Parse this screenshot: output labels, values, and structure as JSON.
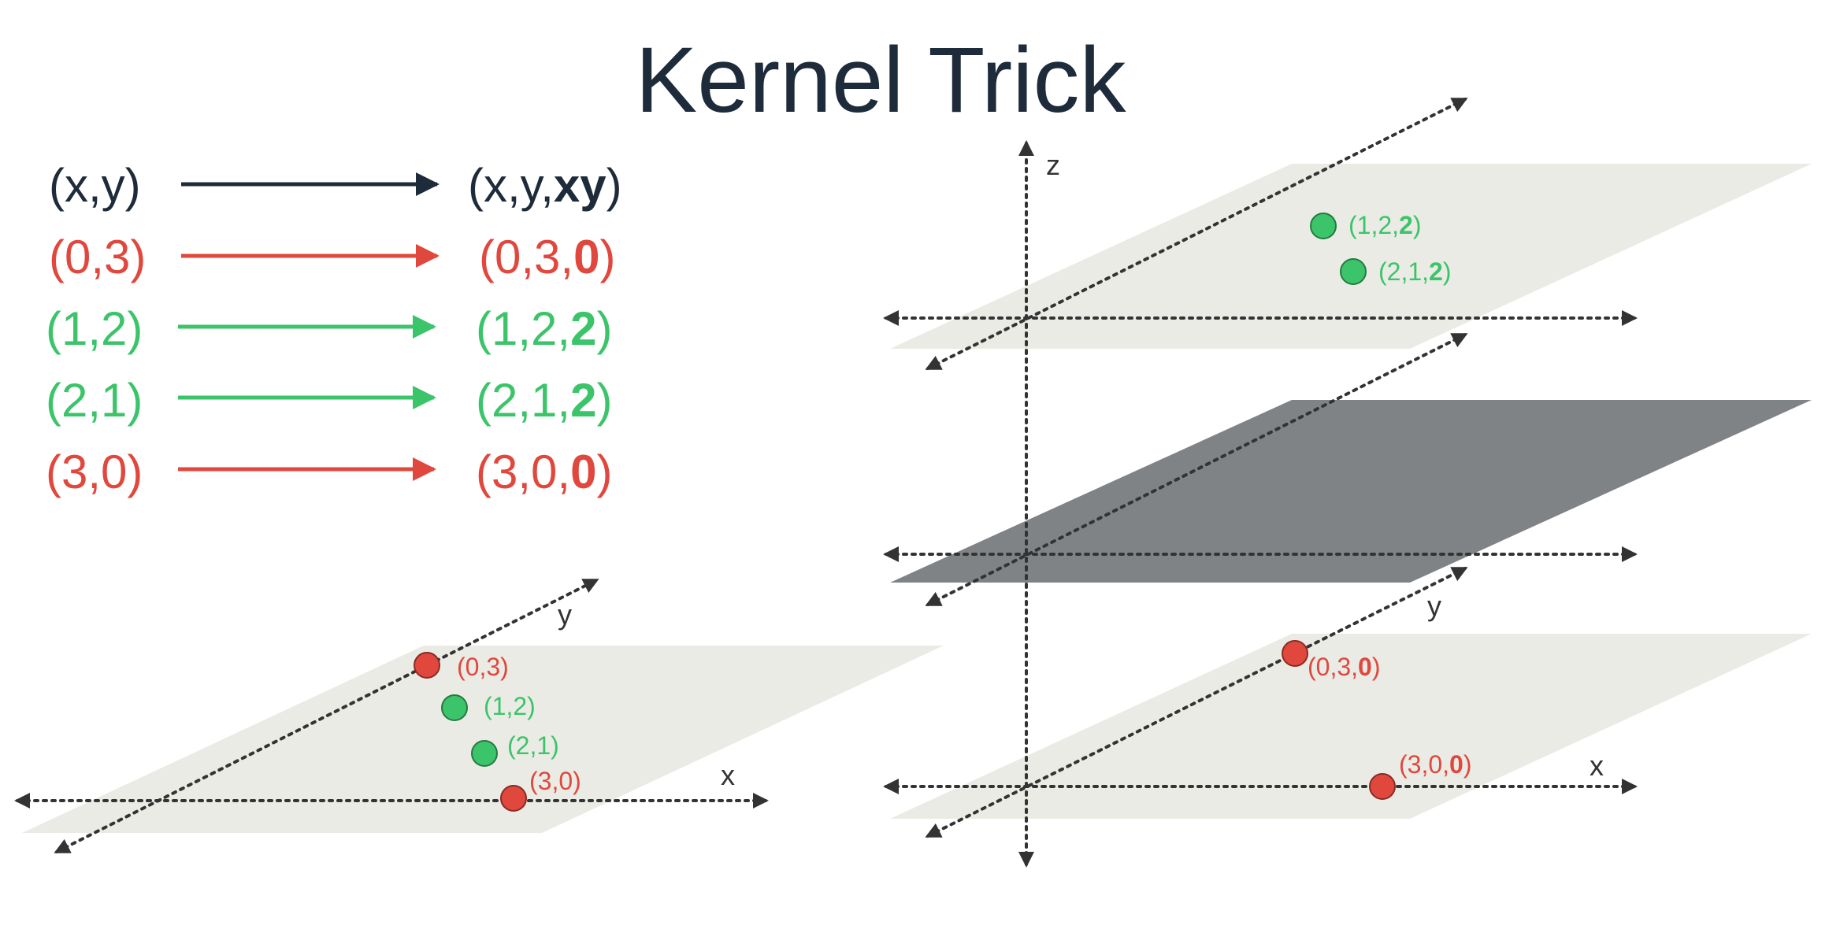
{
  "title": "Kernel Trick",
  "colors": {
    "dark": "#1d2b3a",
    "red": "#e0483e",
    "green": "#3cc46a",
    "plane": "#ebebe5",
    "separator": "#808386",
    "axis": "#333333"
  },
  "mappings": [
    {
      "from": "(x,y)",
      "to_prefix": "(x,y,",
      "to_bold": "xy",
      "to_suffix": ")",
      "color": "dark"
    },
    {
      "from": "(0,3)",
      "to_prefix": "(0,3,",
      "to_bold": "0",
      "to_suffix": ")",
      "color": "red"
    },
    {
      "from": "(1,2)",
      "to_prefix": "(1,2,",
      "to_bold": "2",
      "to_suffix": ")",
      "color": "green"
    },
    {
      "from": "(2,1)",
      "to_prefix": "(2,1,",
      "to_bold": "2",
      "to_suffix": ")",
      "color": "green"
    },
    {
      "from": "(3,0)",
      "to_prefix": "(3,0,",
      "to_bold": "0",
      "to_suffix": ")",
      "color": "red"
    }
  ],
  "left_plot": {
    "axes": {
      "x": "x",
      "y": "y"
    },
    "points": [
      {
        "label": "(0,3)",
        "color": "red"
      },
      {
        "label": "(1,2)",
        "color": "green"
      },
      {
        "label": "(2,1)",
        "color": "green"
      },
      {
        "label": "(3,0)",
        "color": "red"
      }
    ]
  },
  "right_plot": {
    "axes": {
      "x": "x",
      "y": "y",
      "z": "z"
    },
    "top_points": [
      {
        "prefix": "(1,2,",
        "bold": "2",
        "suffix": ")",
        "color": "green"
      },
      {
        "prefix": "(2,1,",
        "bold": "2",
        "suffix": ")",
        "color": "green"
      }
    ],
    "bottom_points": [
      {
        "prefix": "(0,3,",
        "bold": "0",
        "suffix": ")",
        "color": "red"
      },
      {
        "prefix": "(3,0,",
        "bold": "0",
        "suffix": ")",
        "color": "red"
      }
    ]
  }
}
